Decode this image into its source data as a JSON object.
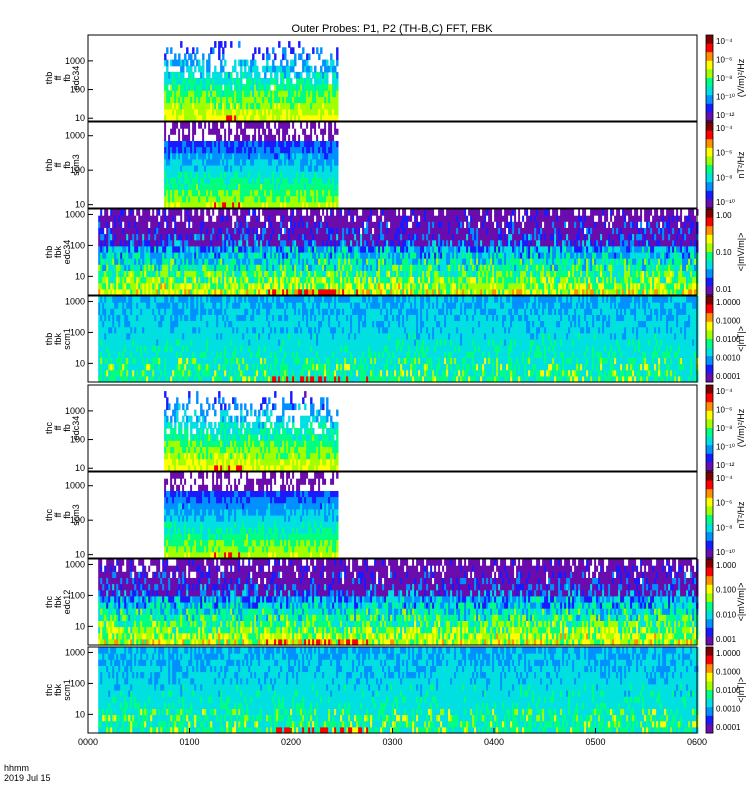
{
  "chart_data": {
    "type": "heatmap",
    "title": "Outer Probes: P1, P2 (TH-B,C) FFT, FBK",
    "date_labels": [
      "hhmm",
      "2019 Jul 15"
    ],
    "x_ticks": [
      "0000",
      "0100",
      "0200",
      "0300",
      "0400",
      "0500",
      "0600"
    ],
    "xlim_hours": [
      0,
      6
    ],
    "panels": [
      {
        "ylabel": [
          "thb",
          "ff",
          "fb",
          "edc34"
        ],
        "ylim": [
          8,
          8000
        ],
        "log_y": true,
        "y_ticks": [
          "10",
          "100",
          "1000"
        ],
        "data_hours": [
          0.75,
          2.45
        ],
        "style": "fft-e",
        "colorbar_label": "(V/m)²/Hz",
        "colorbar_ticks": [
          "10⁻⁴",
          "10⁻⁶",
          "10⁻⁸",
          "10⁻¹⁰",
          "10⁻¹²"
        ]
      },
      {
        "ylabel": [
          "thb",
          "ff",
          "fb",
          "scm3"
        ],
        "ylim": [
          8,
          2500
        ],
        "log_y": true,
        "y_ticks": [
          "10",
          "100",
          "1000"
        ],
        "data_hours": [
          0.75,
          2.45
        ],
        "style": "fft-b",
        "colorbar_label": "nT²/Hz",
        "colorbar_ticks": [
          "10⁻⁴",
          "10⁻⁶",
          "10⁻⁸",
          "10⁻¹⁰"
        ]
      },
      {
        "ylabel": [
          "thb",
          "fbk",
          "edc34"
        ],
        "ylim": [
          2.5,
          1500
        ],
        "log_y": true,
        "y_ticks": [
          "10",
          "100",
          "1000"
        ],
        "data_hours": [
          0.1,
          6.0
        ],
        "style": "fbk-e",
        "colorbar_label": "<|mV/m|>",
        "colorbar_ticks": [
          "1.00",
          "0.10",
          "0.01"
        ]
      },
      {
        "ylabel": [
          "thb",
          "fbk",
          "scm1"
        ],
        "ylim": [
          2.5,
          1500
        ],
        "log_y": true,
        "y_ticks": [
          "10",
          "100",
          "1000"
        ],
        "data_hours": [
          0.1,
          6.0
        ],
        "style": "fbk-b",
        "colorbar_label": "<|nT|>",
        "colorbar_ticks": [
          "1.0000",
          "0.1000",
          "0.0100",
          "0.0010",
          "0.0001"
        ]
      },
      {
        "ylabel": [
          "thc",
          "ff",
          "fb",
          "edc34"
        ],
        "ylim": [
          8,
          8000
        ],
        "log_y": true,
        "y_ticks": [
          "10",
          "100",
          "1000"
        ],
        "data_hours": [
          0.75,
          2.45
        ],
        "style": "fft-e",
        "colorbar_label": "(V/m)²/Hz",
        "colorbar_ticks": [
          "10⁻⁴",
          "10⁻⁶",
          "10⁻⁸",
          "10⁻¹⁰",
          "10⁻¹²"
        ]
      },
      {
        "ylabel": [
          "thc",
          "ff",
          "fb",
          "scm3"
        ],
        "ylim": [
          8,
          2500
        ],
        "log_y": true,
        "y_ticks": [
          "10",
          "100",
          "1000"
        ],
        "data_hours": [
          0.75,
          2.45
        ],
        "style": "fft-b",
        "colorbar_label": "nT²/Hz",
        "colorbar_ticks": [
          "10⁻⁴",
          "10⁻⁶",
          "10⁻⁸",
          "10⁻¹⁰"
        ]
      },
      {
        "ylabel": [
          "thc",
          "fbk",
          "edc12"
        ],
        "ylim": [
          2.5,
          1500
        ],
        "log_y": true,
        "y_ticks": [
          "10",
          "100",
          "1000"
        ],
        "data_hours": [
          0.1,
          6.0
        ],
        "style": "fbk-e",
        "colorbar_label": "<|mV/m|>",
        "colorbar_ticks": [
          "1.000",
          "0.100",
          "0.010",
          "0.001"
        ]
      },
      {
        "ylabel": [
          "thc",
          "fbk",
          "scm1"
        ],
        "ylim": [
          2.5,
          1500
        ],
        "log_y": true,
        "y_ticks": [
          "10",
          "100",
          "1000"
        ],
        "data_hours": [
          0.1,
          6.0
        ],
        "style": "fbk-b",
        "colorbar_label": "<|nT|>",
        "colorbar_ticks": [
          "1.0000",
          "0.1000",
          "0.0100",
          "0.0010",
          "0.0001"
        ]
      }
    ],
    "colormap": [
      "#ffffff",
      "#6a0dad",
      "#1a1aff",
      "#0090ff",
      "#00e0e0",
      "#00ff80",
      "#a0ff00",
      "#ffff00",
      "#ff9000",
      "#ff0000",
      "#800000"
    ]
  }
}
